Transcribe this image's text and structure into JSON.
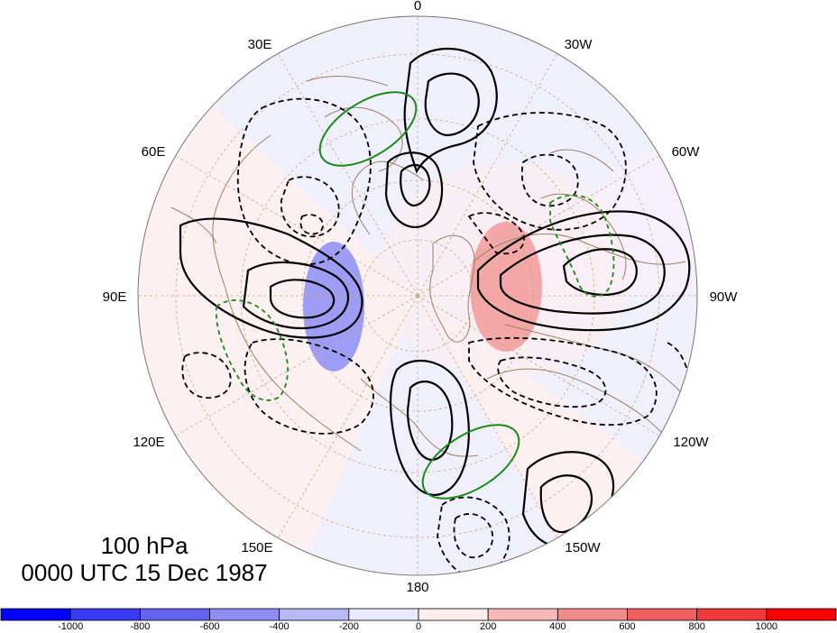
{
  "title": {
    "level": "100 hPa",
    "datetime": "0000 UTC 15 Dec 1987"
  },
  "longitude_labels": [
    "0",
    "30W",
    "60W",
    "90W",
    "120W",
    "150W",
    "180",
    "150E",
    "120E",
    "90E",
    "60E",
    "30E"
  ],
  "colorbar": {
    "ticks": [
      "-1000",
      "-800",
      "-600",
      "-400",
      "-200",
      "0",
      "200",
      "400",
      "600",
      "800",
      "1000"
    ],
    "colors": [
      "#0000ff",
      "#3a3af5",
      "#6363f0",
      "#8d8df3",
      "#b8b8f6",
      "#eaeafc",
      "#fdeeee",
      "#f7b8b8",
      "#f28c8c",
      "#ef5f5f",
      "#ef3a3a",
      "#ff0000"
    ]
  },
  "map": {
    "projection": "north polar stereographic",
    "background_colors": {
      "ocean_neutral": "#f0f0fc",
      "land_tint": "#fdf0f0",
      "coast": "#9a8066",
      "grid": "#c8a882"
    },
    "shaded_anomaly_colors": {
      "positive": "#f3a7a7",
      "negative": "#9d9df6"
    },
    "contour_colors": {
      "primary": "#000000",
      "secondary": "#1a8a1a"
    }
  }
}
